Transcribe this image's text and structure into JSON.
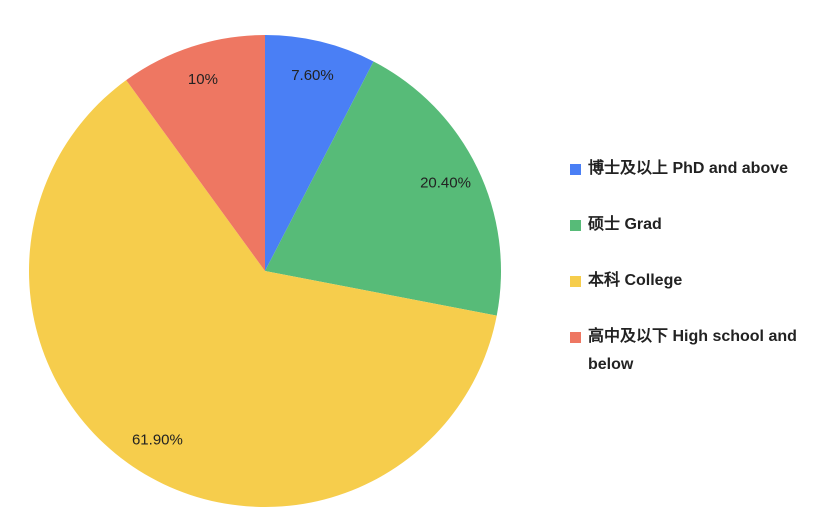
{
  "chart_data": {
    "type": "pie",
    "categories": [
      "博士及以上 PhD and above",
      "硕士 Grad",
      "本科 College",
      "高中及以下 High school and below"
    ],
    "values": [
      7.6,
      20.4,
      61.9,
      10
    ],
    "value_labels": [
      "7.60%",
      "20.40%",
      "61.90%",
      "10%"
    ],
    "colors": [
      "#4a7ff5",
      "#57bb78",
      "#f6cd4c",
      "#ee7762"
    ],
    "legend": "right"
  }
}
